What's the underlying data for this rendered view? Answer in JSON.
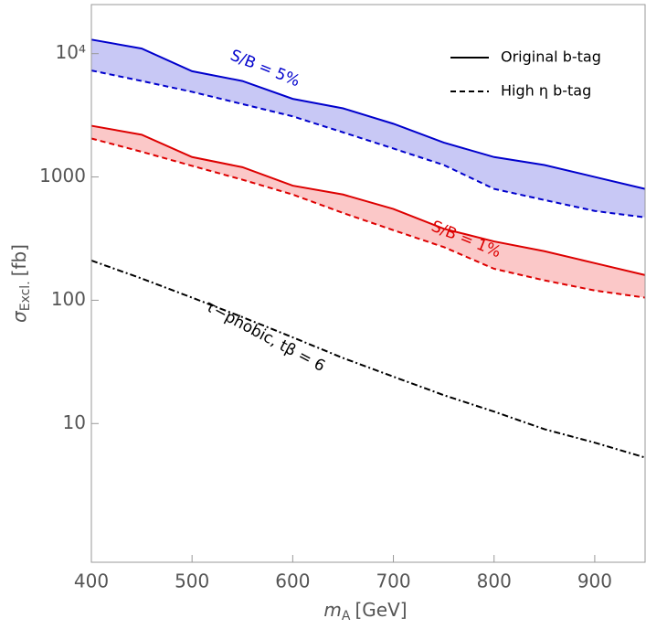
{
  "chart_data": {
    "type": "line",
    "x_label": {
      "text": "m",
      "sub": "A",
      "unit": "[GeV]"
    },
    "y_label": {
      "text": "σ",
      "sub": "Excl.",
      "unit": "[fb]"
    },
    "x": [
      400,
      450,
      500,
      550,
      600,
      650,
      700,
      750,
      800,
      850,
      900,
      950
    ],
    "series": [
      {
        "color": "#0000cc",
        "dash": "solid",
        "fill": "#c8c8f5",
        "values": [
          13000,
          11000,
          7200,
          6000,
          4300,
          3600,
          2700,
          1900,
          1450,
          1250,
          1000,
          800
        ]
      },
      {
        "color": "#0000cc",
        "dash": "dashed",
        "values": [
          7300,
          6000,
          4900,
          3900,
          3100,
          2300,
          1700,
          1250,
          800,
          650,
          530,
          470
        ]
      },
      {
        "color": "#dd0000",
        "dash": "solid",
        "fill": "#fbc8c8",
        "values": [
          2600,
          2200,
          1450,
          1200,
          850,
          720,
          550,
          380,
          300,
          250,
          200,
          160
        ]
      },
      {
        "color": "#dd0000",
        "dash": "dashed",
        "values": [
          2050,
          1600,
          1230,
          950,
          720,
          510,
          370,
          270,
          180,
          145,
          120,
          105
        ]
      },
      {
        "color": "#000000",
        "dash": "dashdot",
        "values": [
          210,
          150,
          105,
          73,
          50,
          34,
          24,
          17,
          12.5,
          9,
          7,
          5.3
        ]
      }
    ],
    "annotations": [
      "S/B = 5%",
      "S/B = 1%",
      "τ−phobic, tβ = 6"
    ],
    "legend": [
      {
        "label": "Original b-tag",
        "dash": "solid"
      },
      {
        "label": "High η b-tag",
        "dash": "dashed"
      }
    ],
    "xlim": [
      400,
      950
    ],
    "xticks": [
      400,
      500,
      600,
      700,
      800,
      900
    ],
    "ylim": [
      0.75,
      25000
    ],
    "log_y": true,
    "yticks": [
      10,
      100,
      1000,
      {
        "value": 10000,
        "label": "10⁴"
      }
    ]
  }
}
